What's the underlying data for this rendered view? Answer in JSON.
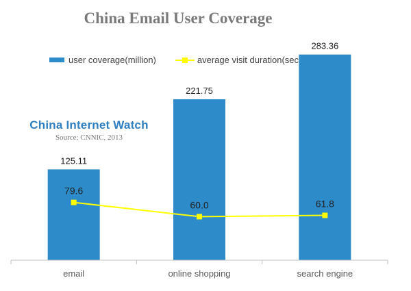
{
  "chart_data": {
    "type": "bar",
    "title": "China Email User Coverage",
    "categories": [
      "email",
      "online shopping",
      "search engine"
    ],
    "series": [
      {
        "name": "user coverage(million)",
        "type": "bar",
        "color": "#2e8bca",
        "values": [
          125.11,
          221.75,
          283.36
        ],
        "labels": [
          "125.11",
          "221.75",
          "283.36"
        ]
      },
      {
        "name": "average visit duration(second)",
        "type": "line",
        "color": "#ffff00",
        "values": [
          79.6,
          60.0,
          61.8
        ],
        "labels": [
          "79.6",
          "60.0",
          "61.8"
        ]
      }
    ],
    "ylim": [
      0,
      300
    ],
    "grid": false,
    "legend_position": "top"
  },
  "watermark": {
    "name": "China Internet Watch",
    "source": "Source: CNNIC, 2013"
  }
}
